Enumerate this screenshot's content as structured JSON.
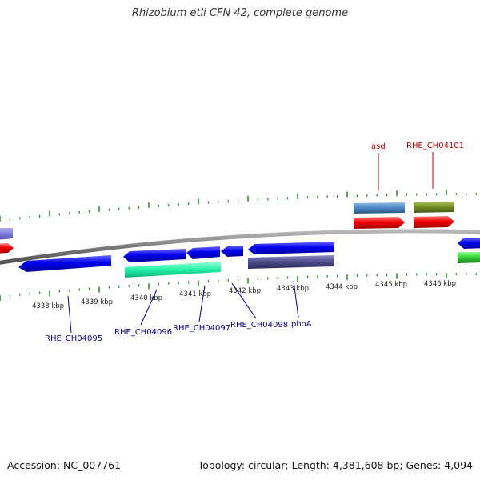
{
  "title": "Rhizobium etli CFN 42, complete genome",
  "footer": {
    "accession": "Accession: NC_007761",
    "summary": "Topology: circular; Length: 4,381,608 bp; Genes: 4,094"
  },
  "colors": {
    "backbone": "#808080",
    "tick": "#1f8a1f",
    "label_forward": "#b00000",
    "label_reverse": "#000090",
    "blue": "#0a0ae6",
    "red": "#f00a0a",
    "steelblue": "#4a86c0",
    "olive": "#6f8c22",
    "aqua": "#22f2a8",
    "slate": "#4a4a8a",
    "green": "#33cc33"
  },
  "scale_labels": [
    "4338 kbp",
    "4339 kbp",
    "4340 kbp",
    "4341 kbp",
    "4342 kbp",
    "4343 kbp",
    "4344 kbp",
    "4345 kbp",
    "4346 kbp"
  ],
  "gene_labels": {
    "asd": "asd",
    "che04101": "RHE_CH04101",
    "che04095": "RHE_CH04095",
    "che04096": "RHE_CH04096",
    "che04097": "RHE_CH04097",
    "che04098": "RHE_CH04098",
    "phoA": "phoA"
  }
}
